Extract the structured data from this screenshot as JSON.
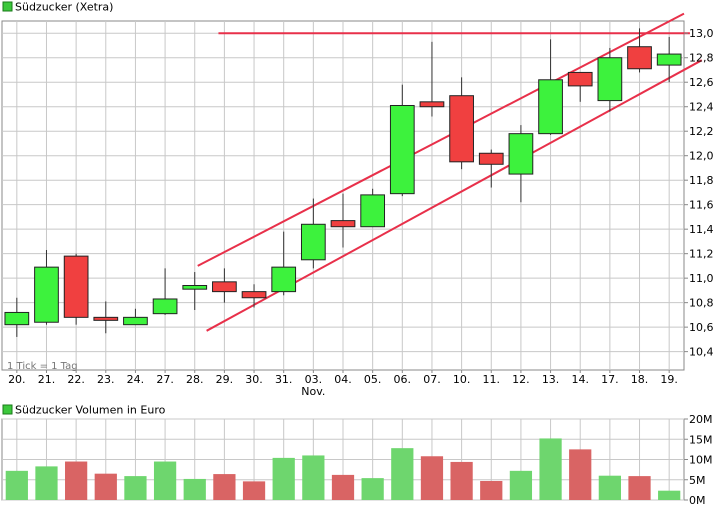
{
  "colors": {
    "up": "#3df23d",
    "down": "#f04040",
    "wick": "#333333",
    "trendline": "#e8304a",
    "grid": "#c8c8c8",
    "frame": "#888888",
    "volume_up": "#6ed66e",
    "volume_down": "#d96464",
    "legend_square": "#3cc83c"
  },
  "chart_data": [
    {
      "type": "candlestick",
      "title": "Südzucker (Xetra)",
      "annotation": "1 Tick = 1 Tag",
      "x_month_label": "Nov.",
      "categories": [
        "20.",
        "21.",
        "22.",
        "23.",
        "24.",
        "27.",
        "28.",
        "29.",
        "30.",
        "31.",
        "03.",
        "04.",
        "05.",
        "06.",
        "07.",
        "10.",
        "11.",
        "12.",
        "13.",
        "14.",
        "17.",
        "18.",
        "19."
      ],
      "ohlc": [
        {
          "open": 10.62,
          "high": 10.84,
          "low": 10.52,
          "close": 10.72
        },
        {
          "open": 10.64,
          "high": 11.23,
          "low": 10.62,
          "close": 11.09
        },
        {
          "open": 11.18,
          "high": 11.2,
          "low": 10.62,
          "close": 10.68
        },
        {
          "open": 10.68,
          "high": 10.81,
          "low": 10.55,
          "close": 10.66
        },
        {
          "open": 10.62,
          "high": 10.75,
          "low": 10.62,
          "close": 10.68
        },
        {
          "open": 10.71,
          "high": 11.08,
          "low": 10.7,
          "close": 10.83
        },
        {
          "open": 10.91,
          "high": 11.05,
          "low": 10.74,
          "close": 10.94
        },
        {
          "open": 10.97,
          "high": 11.08,
          "low": 10.8,
          "close": 10.89
        },
        {
          "open": 10.89,
          "high": 10.95,
          "low": 10.76,
          "close": 10.84
        },
        {
          "open": 10.89,
          "high": 11.38,
          "low": 10.86,
          "close": 11.09
        },
        {
          "open": 11.15,
          "high": 11.65,
          "low": 11.08,
          "close": 11.44
        },
        {
          "open": 11.47,
          "high": 11.69,
          "low": 11.25,
          "close": 11.42
        },
        {
          "open": 11.42,
          "high": 11.73,
          "low": 11.42,
          "close": 11.68
        },
        {
          "open": 11.69,
          "high": 12.58,
          "low": 11.67,
          "close": 12.41
        },
        {
          "open": 12.44,
          "high": 12.93,
          "low": 12.32,
          "close": 12.4
        },
        {
          "open": 12.49,
          "high": 12.64,
          "low": 11.89,
          "close": 11.95
        },
        {
          "open": 12.02,
          "high": 12.05,
          "low": 11.74,
          "close": 11.93
        },
        {
          "open": 11.85,
          "high": 12.25,
          "low": 11.62,
          "close": 12.18
        },
        {
          "open": 12.18,
          "high": 12.95,
          "low": 12.17,
          "close": 12.62
        },
        {
          "open": 12.68,
          "high": 12.68,
          "low": 12.44,
          "close": 12.57
        },
        {
          "open": 12.45,
          "high": 12.88,
          "low": 12.36,
          "close": 12.8
        },
        {
          "open": 12.89,
          "high": 13.04,
          "low": 12.68,
          "close": 12.71
        },
        {
          "open": 12.74,
          "high": 12.97,
          "low": 12.6,
          "close": 12.83
        }
      ],
      "y_ticks": [
        "10,4",
        "10,6",
        "10,8",
        "11,0",
        "11,2",
        "11,4",
        "11,6",
        "11,8",
        "12,0",
        "12,2",
        "12,4",
        "12,6",
        "12,8",
        "13,0"
      ],
      "ylim": [
        10.25,
        13.1
      ],
      "grid": true,
      "trendlines": [
        {
          "from": {
            "index": 6.6,
            "y": 11.1
          },
          "to": {
            "index": 23.0,
            "y": 13.16
          }
        },
        {
          "from": {
            "index": 6.9,
            "y": 10.57
          },
          "to": {
            "index": 23.6,
            "y": 12.78
          }
        },
        {
          "from": {
            "index": 7.3,
            "y": 13.0
          },
          "to": {
            "index": 23.2,
            "y": 13.0
          }
        }
      ]
    },
    {
      "type": "bar",
      "title": "Südzucker Volumen in Euro",
      "categories": [
        "20.",
        "21.",
        "22.",
        "23.",
        "24.",
        "27.",
        "28.",
        "29.",
        "30.",
        "31.",
        "03.",
        "04.",
        "05.",
        "06.",
        "07.",
        "10.",
        "11.",
        "12.",
        "13.",
        "14.",
        "17.",
        "18.",
        "19."
      ],
      "values": [
        7.2,
        8.3,
        9.5,
        6.5,
        5.9,
        9.5,
        5.2,
        6.4,
        4.6,
        10.4,
        11.0,
        6.2,
        5.4,
        12.8,
        10.8,
        9.4,
        4.7,
        7.2,
        15.2,
        12.5,
        6.0,
        5.9,
        2.3
      ],
      "directions": [
        "up",
        "up",
        "down",
        "down",
        "up",
        "up",
        "up",
        "down",
        "down",
        "up",
        "up",
        "down",
        "up",
        "up",
        "down",
        "down",
        "down",
        "up",
        "up",
        "down",
        "up",
        "down",
        "up"
      ],
      "y_ticks": [
        "0M",
        "5M",
        "10M",
        "15M",
        "20M"
      ],
      "ylim": [
        0,
        20
      ],
      "unit": "M",
      "grid": true
    }
  ]
}
